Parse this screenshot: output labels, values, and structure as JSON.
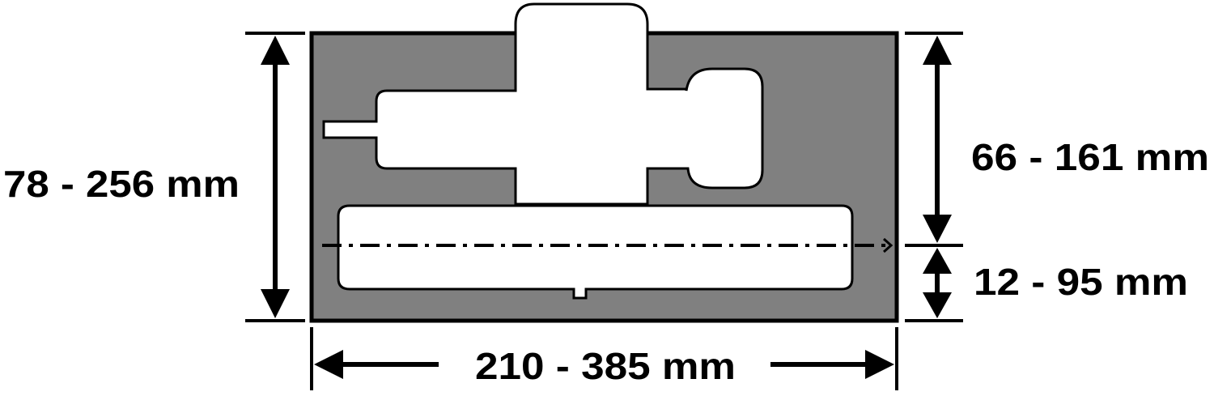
{
  "dimensions": {
    "height_total": "78 - 256 mm",
    "height_upper": "66 - 161 mm",
    "height_lower": "12 - 95 mm",
    "width": "210 - 385 mm"
  },
  "colors": {
    "board": "#808080",
    "outline": "#000000",
    "cutout": "#ffffff",
    "background": "#ffffff"
  },
  "icons": {
    "arrows": "double-headed-dimension-arrow",
    "cutting_line": "dash-dot-line-arrow"
  }
}
